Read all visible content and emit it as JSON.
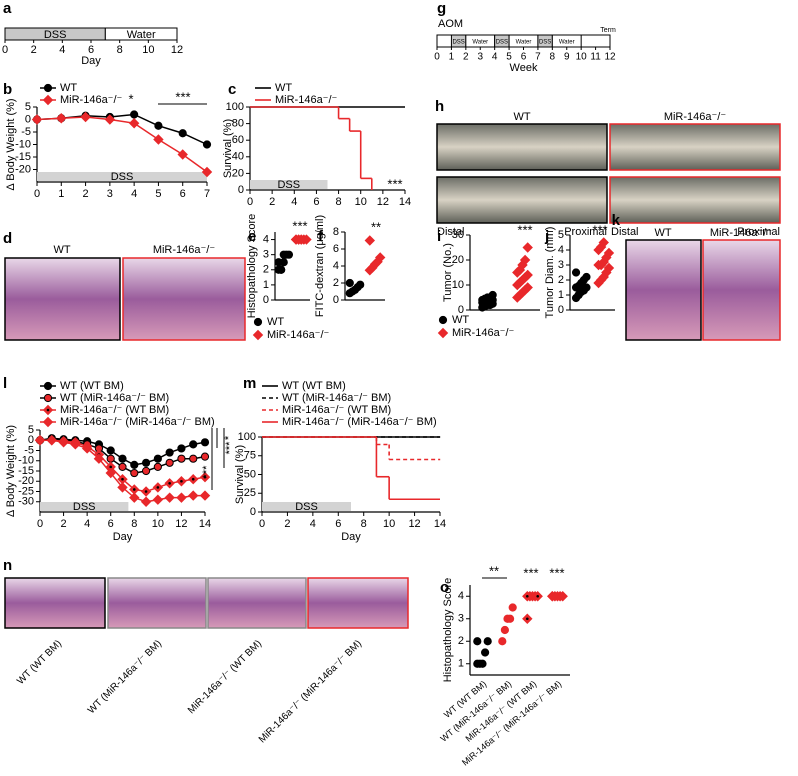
{
  "chart_data": [
    {
      "type": "timeline",
      "panel": "a",
      "xlabel": "Day",
      "xlim": [
        0,
        12
      ],
      "xticks": [
        0,
        2,
        4,
        6,
        8,
        10,
        12
      ],
      "segments": [
        {
          "label": "DSS",
          "start": 0,
          "end": 7,
          "color": "#c8c8c8"
        },
        {
          "label": "Water",
          "start": 7,
          "end": 12,
          "color": "#ffffff"
        }
      ]
    },
    {
      "type": "timeline",
      "panel": "g",
      "xlabel": "Week",
      "xlim": [
        0,
        12
      ],
      "xticks": [
        0,
        1,
        2,
        3,
        4,
        5,
        6,
        7,
        8,
        9,
        10,
        11,
        12
      ],
      "annotations": [
        "AOM",
        "Term"
      ],
      "segments": [
        {
          "label": "DSS",
          "start": 1,
          "end": 2,
          "color": "#c8c8c8"
        },
        {
          "label": "Water",
          "start": 2,
          "end": 4,
          "color": "#ffffff"
        },
        {
          "label": "DSS",
          "start": 4,
          "end": 5,
          "color": "#c8c8c8"
        },
        {
          "label": "Water",
          "start": 5,
          "end": 7,
          "color": "#ffffff"
        },
        {
          "label": "DSS",
          "start": 7,
          "end": 8,
          "color": "#c8c8c8"
        },
        {
          "label": "Water",
          "start": 8,
          "end": 10,
          "color": "#ffffff"
        }
      ]
    },
    {
      "type": "line",
      "panel": "b",
      "ylabel": "Δ Body Weight (%)",
      "xlim": [
        0,
        7
      ],
      "ylim": [
        -25,
        5
      ],
      "xticks": [
        0,
        1,
        2,
        3,
        4,
        5,
        6,
        7
      ],
      "yticks": [
        -20,
        -15,
        -10,
        -5,
        0,
        5
      ],
      "x": [
        0,
        1,
        2,
        3,
        4,
        5,
        6,
        7
      ],
      "band": {
        "label": "DSS",
        "start": 0,
        "end": 7
      },
      "annotations": [
        "*",
        "***"
      ],
      "series": [
        {
          "name": "WT",
          "color": "#000000",
          "fill": "#000000",
          "marker": "circle",
          "values": [
            0,
            0.5,
            1.5,
            1,
            2,
            -2.5,
            -5.5,
            -10
          ]
        },
        {
          "name": "MiR-146a⁻/⁻",
          "color": "#e8282b",
          "fill": "#e8282b",
          "marker": "diamond",
          "values": [
            0,
            0.5,
            1,
            0,
            -1.5,
            -8,
            -14,
            -21
          ]
        }
      ]
    },
    {
      "type": "step",
      "panel": "c",
      "ylabel": "Survival (%)",
      "xlim": [
        0,
        14
      ],
      "ylim": [
        0,
        100
      ],
      "xticks": [
        0,
        2,
        4,
        6,
        8,
        10,
        12,
        14
      ],
      "yticks": [
        0,
        20,
        40,
        60,
        80,
        100
      ],
      "band": {
        "label": "DSS",
        "start": 0,
        "end": 7
      },
      "annotations": [
        "***"
      ],
      "series": [
        {
          "name": "WT",
          "color": "#000000",
          "x": [
            0,
            14
          ],
          "values": [
            100,
            100
          ]
        },
        {
          "name": "MiR-146a⁻/⁻",
          "color": "#e8282b",
          "x": [
            0,
            8,
            9,
            10,
            11
          ],
          "values": [
            100,
            86,
            71,
            14,
            0
          ]
        }
      ]
    },
    {
      "type": "dot",
      "panel": "e",
      "ylabel": "Histopathology Score",
      "ylim": [
        0,
        4.5
      ],
      "yticks": [
        0,
        1,
        2,
        3,
        4
      ],
      "categories": [
        null,
        null
      ],
      "values": [
        [
          2,
          2,
          2.5,
          3,
          3,
          2.5,
          2,
          3
        ],
        [
          4,
          4,
          4,
          4,
          4,
          4,
          4,
          4
        ]
      ],
      "colors": [
        "#000000",
        "#e8282b"
      ],
      "markers": [
        "circle",
        "diamond"
      ],
      "legend": [
        "WT",
        "MiR-146a⁻/⁻"
      ],
      "annotations": [
        "***"
      ]
    },
    {
      "type": "dot",
      "panel": "f",
      "ylabel": "FITC-dextran (μg/ml)",
      "ylim": [
        0,
        8
      ],
      "yticks": [
        0,
        2,
        4,
        6,
        8
      ],
      "categories": [
        null,
        null
      ],
      "values": [
        [
          0.8,
          1,
          1.2,
          1.5,
          1.8,
          2
        ],
        [
          3.5,
          3.8,
          4.2,
          4.5,
          5,
          7
        ]
      ],
      "colors": [
        "#000000",
        "#e8282b"
      ],
      "markers": [
        "circle",
        "diamond"
      ],
      "annotations": [
        "**"
      ]
    },
    {
      "type": "dot",
      "panel": "i",
      "ylabel": "Tumor (No.)",
      "ylim": [
        0,
        30
      ],
      "yticks": [
        0,
        10,
        20,
        30
      ],
      "categories": [
        null,
        null
      ],
      "values": [
        [
          1,
          1.5,
          2,
          2,
          2.5,
          3,
          3,
          3,
          3.5,
          4,
          4,
          4.5,
          5,
          5,
          6
        ],
        [
          5,
          6,
          7,
          8,
          9,
          10,
          11,
          12,
          13,
          14,
          15,
          16,
          18,
          20,
          25
        ]
      ],
      "colors": [
        "#000000",
        "#e8282b"
      ],
      "markers": [
        "circle",
        "diamond"
      ],
      "legend": [
        "WT",
        "MiR-146a⁻/⁻"
      ],
      "annotations": [
        "***"
      ]
    },
    {
      "type": "dot",
      "panel": "j",
      "ylabel": "Tumor Diam. (mm)",
      "ylim": [
        0,
        5
      ],
      "yticks": [
        0,
        1,
        2,
        3,
        4,
        5
      ],
      "categories": [
        null,
        null
      ],
      "values": [
        [
          0.8,
          1,
          1.2,
          1.3,
          1.5,
          1.5,
          1.6,
          1.8,
          2,
          2.2,
          2.5,
          1,
          1.4
        ],
        [
          1.8,
          2,
          2.2,
          2.5,
          2.8,
          3,
          3,
          3.2,
          3.5,
          3.8,
          4,
          4.2,
          4.5
        ]
      ],
      "colors": [
        "#000000",
        "#e8282b"
      ],
      "markers": [
        "circle",
        "diamond"
      ],
      "annotations": [
        "***"
      ]
    },
    {
      "type": "line",
      "panel": "l",
      "ylabel": "Δ Body Weight (%)",
      "xlabel": "Day",
      "xlim": [
        0,
        14
      ],
      "ylim": [
        -35,
        5
      ],
      "xticks": [
        0,
        2,
        4,
        6,
        8,
        10,
        12,
        14
      ],
      "yticks": [
        -30,
        -25,
        -20,
        -15,
        -10,
        -5,
        0,
        5
      ],
      "x": [
        0,
        1,
        2,
        3,
        4,
        5,
        6,
        7,
        8,
        9,
        10,
        11,
        12,
        13,
        14
      ],
      "band": {
        "label": "DSS",
        "start": 0,
        "end": 7.5
      },
      "annotations": [
        "*",
        "***",
        "***"
      ],
      "series": [
        {
          "name": "WT (WT BM)",
          "color": "#000000",
          "fill": "#000000",
          "marker": "circle",
          "values": [
            0,
            1,
            0.5,
            0,
            -0.5,
            -2,
            -5,
            -9,
            -12,
            -11,
            -9,
            -6,
            -4,
            -2,
            -1
          ]
        },
        {
          "name": "WT (MiR-146a⁻/⁻ BM)",
          "color": "#000000",
          "fill": "#e8282b",
          "marker": "circle",
          "values": [
            0,
            0.5,
            0,
            -0.5,
            -2,
            -4,
            -9,
            -13,
            -16,
            -15,
            -13,
            -11,
            -9,
            -9,
            -8
          ]
        },
        {
          "name": "MiR-146a⁻/⁻ (WT BM)",
          "color": "#e8282b",
          "fill": "#e8282b",
          "marker": "diamond-dot",
          "values": [
            0,
            0,
            -0.5,
            -1,
            -3,
            -7,
            -13,
            -19,
            -24,
            -25,
            -23,
            -21,
            -20,
            -19,
            -18
          ]
        },
        {
          "name": "MiR-146a⁻/⁻ (MiR-146a⁻/⁻ BM)",
          "color": "#e8282b",
          "fill": "#e8282b",
          "marker": "diamond",
          "values": [
            0,
            0,
            -1,
            -2,
            -4,
            -9,
            -16,
            -23,
            -28,
            -30,
            -29,
            -28,
            -28,
            -27,
            -27
          ]
        }
      ]
    },
    {
      "type": "step",
      "panel": "m",
      "ylabel": "Survival (%)",
      "xlabel": "Day",
      "xlim": [
        0,
        14
      ],
      "ylim": [
        0,
        100
      ],
      "xticks": [
        0,
        2,
        4,
        6,
        8,
        10,
        12,
        14
      ],
      "yticks": [
        0,
        25,
        50,
        75,
        100
      ],
      "band": {
        "label": "DSS",
        "start": 0,
        "end": 7
      },
      "series": [
        {
          "name": "WT (WT BM)",
          "color": "#000000",
          "x": [
            0,
            14
          ],
          "values": [
            100,
            100
          ]
        },
        {
          "name": "WT (MiR-146a⁻/⁻ BM)",
          "color": "#000000",
          "dash": true,
          "x": [
            0,
            14
          ],
          "values": [
            100,
            100
          ]
        },
        {
          "name": "MiR-146a⁻/⁻ (WT BM)",
          "color": "#e8282b",
          "dash": true,
          "x": [
            0,
            9,
            10,
            14
          ],
          "values": [
            100,
            90,
            70,
            70
          ]
        },
        {
          "name": "MiR-146a⁻/⁻ (MiR-146a⁻/⁻ BM)",
          "color": "#e8282b",
          "x": [
            0,
            9,
            10,
            14
          ],
          "values": [
            100,
            47,
            17,
            17
          ]
        }
      ]
    },
    {
      "type": "dot",
      "panel": "o",
      "ylabel": "Histopathology Score",
      "ylim": [
        0.5,
        4.5
      ],
      "yticks": [
        1,
        2,
        3,
        4
      ],
      "categories": [
        "WT (WT BM)",
        "WT (MiR-146a⁻/⁻ BM)",
        "MiR-146a⁻/⁻ (WT BM)",
        "MiR-146a⁻/⁻ (MiR-146a⁻/⁻ BM)"
      ],
      "values": [
        [
          1,
          1,
          1,
          1.5,
          2,
          2
        ],
        [
          2,
          2.5,
          3,
          3,
          3.5
        ],
        [
          3,
          4,
          4,
          4,
          4,
          4
        ],
        [
          4,
          4,
          4,
          4,
          4,
          4
        ]
      ],
      "colors": [
        "#000000",
        "#e8282b",
        "#e8282b",
        "#e8282b"
      ],
      "markers": [
        "circle",
        "circle",
        "diamond-dot",
        "diamond"
      ],
      "annotations": [
        "**",
        "***",
        "***"
      ]
    }
  ],
  "figure": {
    "images": [
      {
        "panel": "d",
        "labels": [
          "WT",
          "MiR-146a⁻/⁻"
        ]
      },
      {
        "panel": "h",
        "labels": [
          "WT",
          "MiR-146a⁻/⁻",
          "Distal",
          "Proximal",
          "Distal",
          "Proximal"
        ]
      },
      {
        "panel": "k",
        "labels": [
          "WT",
          "MiR-146a⁻/⁻"
        ]
      },
      {
        "panel": "n",
        "labels": [
          "WT (WT BM)",
          "WT (MiR-146a⁻/⁻ BM)",
          "MiR-146a⁻/⁻ (WT BM)",
          "MiR-146a⁻/⁻ (MiR-146a⁻/⁻ BM)"
        ]
      }
    ]
  }
}
